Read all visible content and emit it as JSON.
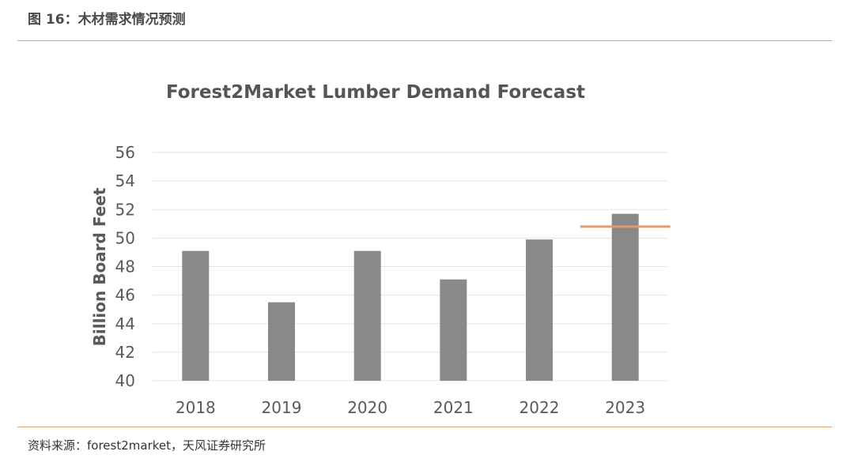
{
  "caption": "图 16：木材需求情况预测",
  "source": "资料来源：forest2market，天风证券研究所",
  "colors": {
    "bar": "#898989",
    "forecast_line": "#e39a6e",
    "grid": "#e3e3e3",
    "rule": "#e6a06a"
  },
  "chart_data": {
    "type": "bar",
    "title": "Forest2Market Lumber Demand Forecast",
    "xlabel": "",
    "ylabel": "Billion Board Feet",
    "categories": [
      "2018",
      "2019",
      "2020",
      "2021",
      "2022",
      "2023"
    ],
    "values": [
      49.1,
      45.5,
      49.1,
      47.1,
      49.9,
      51.7
    ],
    "ylim": [
      40,
      56
    ],
    "yticks": [
      "40",
      "42",
      "44",
      "46",
      "48",
      "50",
      "52",
      "54",
      "56"
    ],
    "grid": true,
    "legend": "none",
    "reference_line": {
      "category": "2023",
      "value": 50.8
    }
  }
}
